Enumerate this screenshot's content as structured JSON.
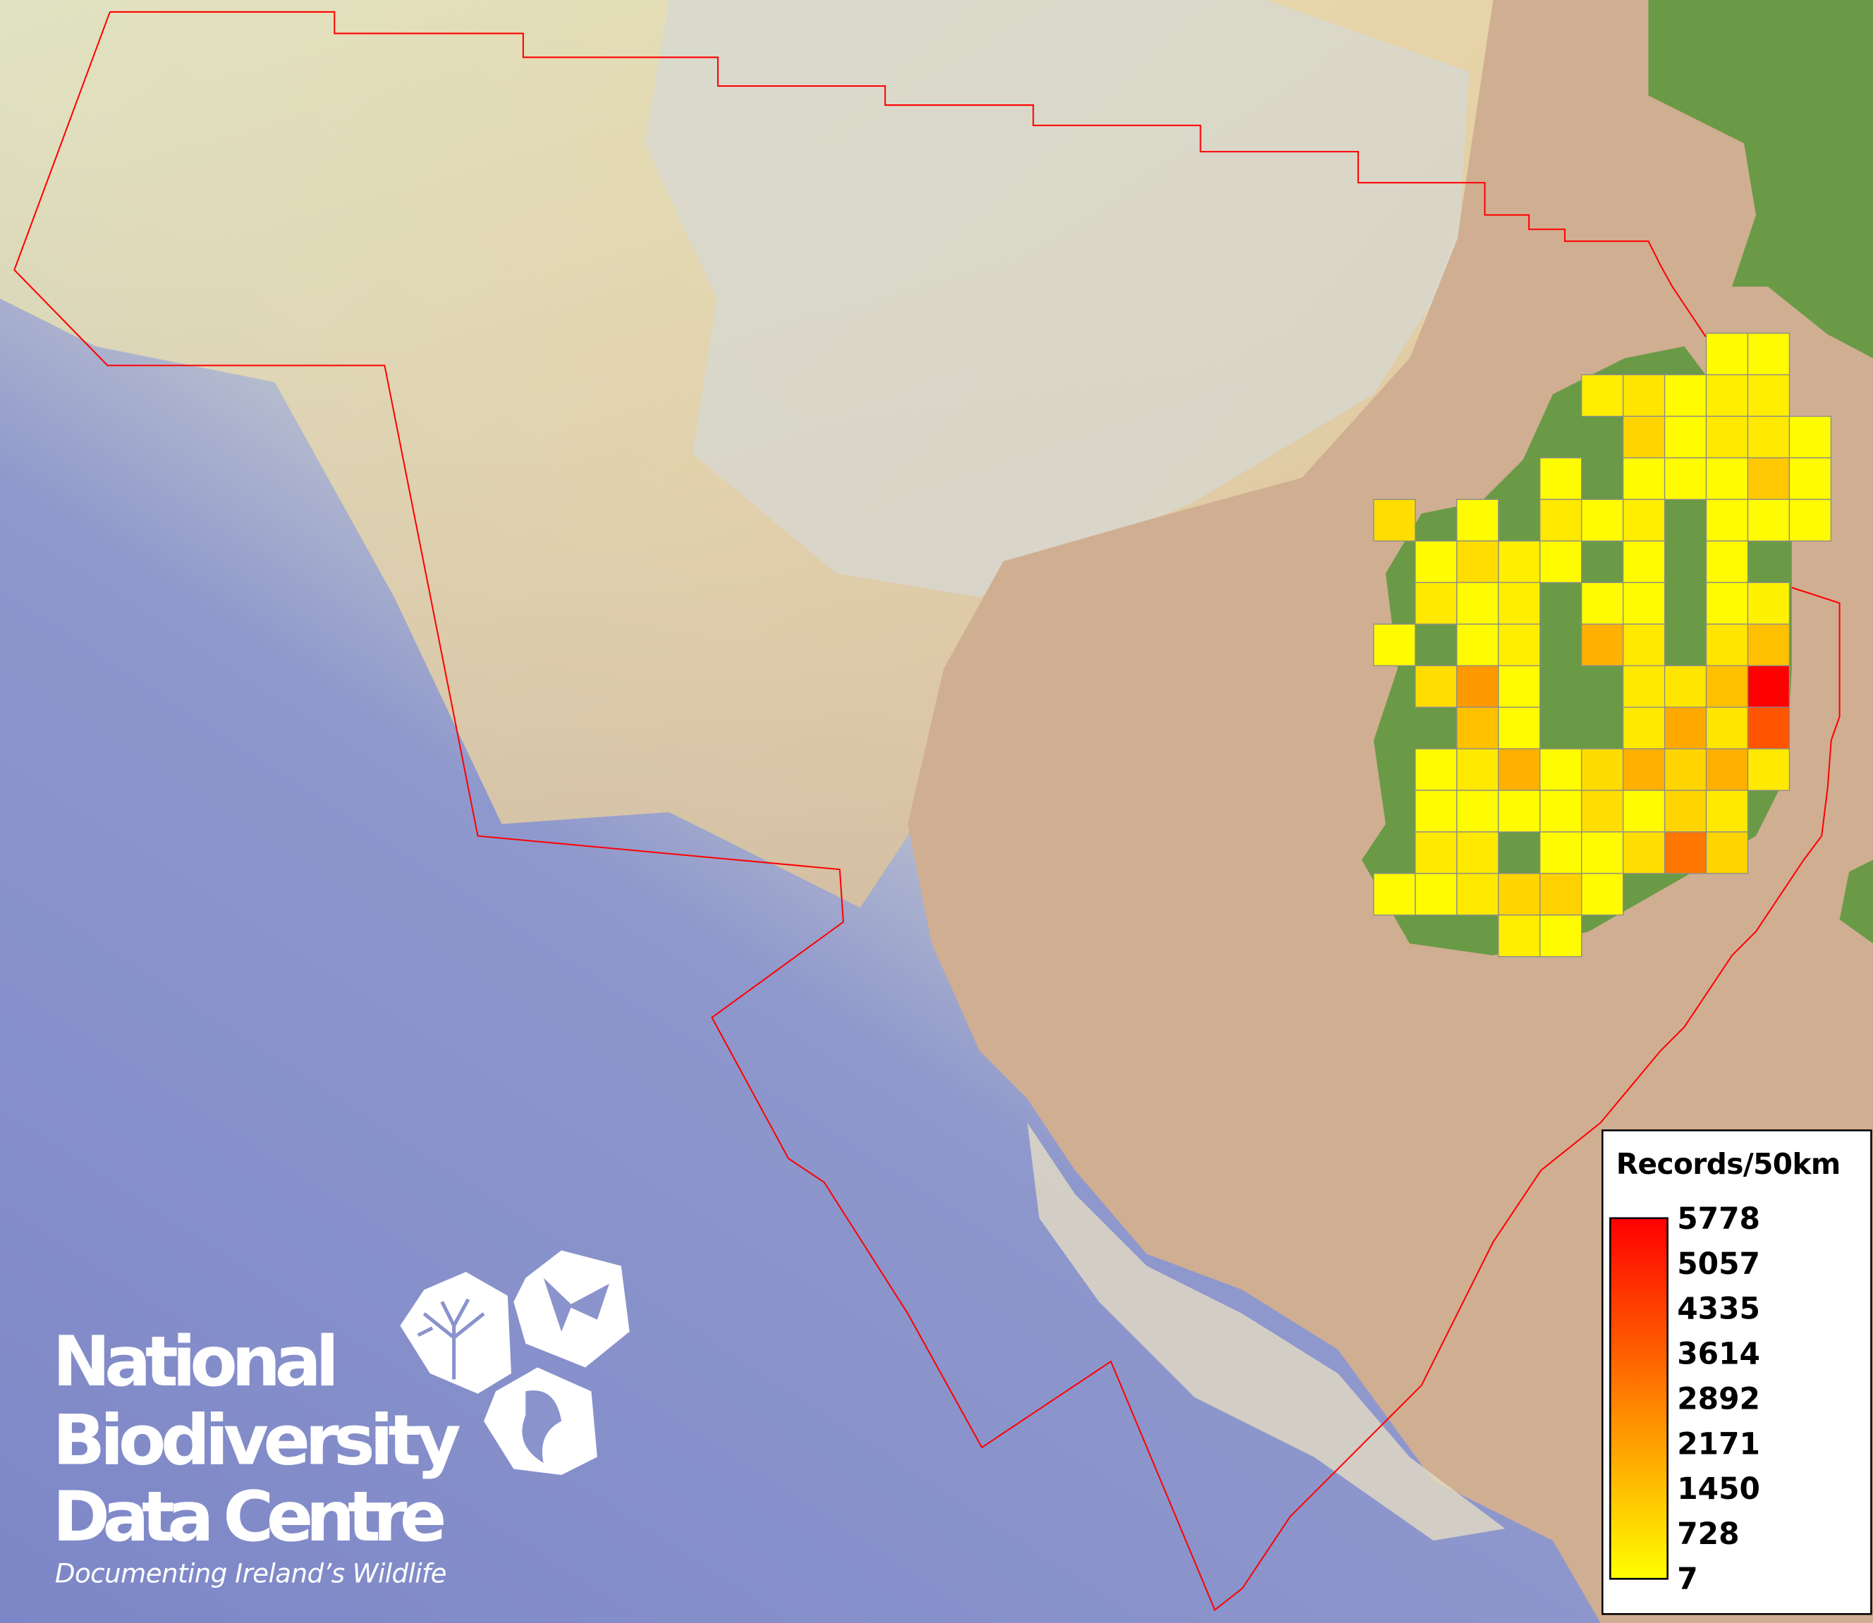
{
  "logo": {
    "line1": "National",
    "line2": "Biodiversity",
    "line3": "Data Centre",
    "tagline": "Documenting Ireland’s Wildlife",
    "icons": [
      "tree-icon",
      "butterfly-icon",
      "seahorse-icon"
    ]
  },
  "legend": {
    "title": "Records/50km",
    "labels": [
      "5778",
      "5057",
      "4335",
      "3614",
      "2892",
      "2171",
      "1450",
      "728",
      "7"
    ],
    "min": 7,
    "max": 5778,
    "color_low": "#ffff00",
    "color_high": "#ff0000"
  },
  "colors": {
    "boundary": "#ff0000",
    "grid_stroke": "#8c8c8c",
    "deep_ocean": "#7f89c8",
    "shelf": "#e8e4b4",
    "land_shelf": "#cfae92",
    "land": "#6a9a46"
  },
  "grid": {
    "cells": [
      {
        "row": 0,
        "col": 8,
        "value": 100
      },
      {
        "row": 0,
        "col": 9,
        "value": 100
      },
      {
        "row": 1,
        "col": 5,
        "value": 390
      },
      {
        "row": 1,
        "col": 6,
        "value": 600
      },
      {
        "row": 1,
        "col": 7,
        "value": 100
      },
      {
        "row": 1,
        "col": 8,
        "value": 390
      },
      {
        "row": 1,
        "col": 9,
        "value": 390
      },
      {
        "row": 2,
        "col": 6,
        "value": 980
      },
      {
        "row": 2,
        "col": 7,
        "value": 100
      },
      {
        "row": 2,
        "col": 8,
        "value": 500
      },
      {
        "row": 2,
        "col": 9,
        "value": 500
      },
      {
        "row": 2,
        "col": 10,
        "value": 100
      },
      {
        "row": 3,
        "col": 4,
        "value": 100
      },
      {
        "row": 3,
        "col": 6,
        "value": 100
      },
      {
        "row": 3,
        "col": 7,
        "value": 100
      },
      {
        "row": 3,
        "col": 8,
        "value": 100
      },
      {
        "row": 3,
        "col": 9,
        "value": 1250
      },
      {
        "row": 3,
        "col": 10,
        "value": 100
      },
      {
        "row": 4,
        "col": 0,
        "value": 770
      },
      {
        "row": 4,
        "col": 2,
        "value": 100
      },
      {
        "row": 4,
        "col": 4,
        "value": 500
      },
      {
        "row": 4,
        "col": 5,
        "value": 100
      },
      {
        "row": 4,
        "col": 6,
        "value": 390
      },
      {
        "row": 4,
        "col": 8,
        "value": 100
      },
      {
        "row": 4,
        "col": 9,
        "value": 100
      },
      {
        "row": 4,
        "col": 10,
        "value": 100
      },
      {
        "row": 5,
        "col": 1,
        "value": 100
      },
      {
        "row": 5,
        "col": 2,
        "value": 770
      },
      {
        "row": 5,
        "col": 3,
        "value": 390
      },
      {
        "row": 5,
        "col": 4,
        "value": 100
      },
      {
        "row": 5,
        "col": 6,
        "value": 100
      },
      {
        "row": 5,
        "col": 8,
        "value": 100
      },
      {
        "row": 6,
        "col": 1,
        "value": 500
      },
      {
        "row": 6,
        "col": 2,
        "value": 100
      },
      {
        "row": 6,
        "col": 3,
        "value": 390
      },
      {
        "row": 6,
        "col": 5,
        "value": 100
      },
      {
        "row": 6,
        "col": 6,
        "value": 100
      },
      {
        "row": 6,
        "col": 8,
        "value": 100
      },
      {
        "row": 6,
        "col": 9,
        "value": 300
      },
      {
        "row": 7,
        "col": 0,
        "value": 100
      },
      {
        "row": 7,
        "col": 2,
        "value": 100
      },
      {
        "row": 7,
        "col": 3,
        "value": 390
      },
      {
        "row": 7,
        "col": 5,
        "value": 1800
      },
      {
        "row": 7,
        "col": 6,
        "value": 500
      },
      {
        "row": 7,
        "col": 8,
        "value": 600
      },
      {
        "row": 7,
        "col": 9,
        "value": 1430
      },
      {
        "row": 8,
        "col": 1,
        "value": 770
      },
      {
        "row": 8,
        "col": 2,
        "value": 2320
      },
      {
        "row": 8,
        "col": 3,
        "value": 100
      },
      {
        "row": 8,
        "col": 6,
        "value": 500
      },
      {
        "row": 8,
        "col": 7,
        "value": 600
      },
      {
        "row": 8,
        "col": 8,
        "value": 1430
      },
      {
        "row": 8,
        "col": 9,
        "value": 5778
      },
      {
        "row": 9,
        "col": 2,
        "value": 1430
      },
      {
        "row": 9,
        "col": 3,
        "value": 100
      },
      {
        "row": 9,
        "col": 6,
        "value": 500
      },
      {
        "row": 9,
        "col": 7,
        "value": 1960
      },
      {
        "row": 9,
        "col": 8,
        "value": 600
      },
      {
        "row": 9,
        "col": 9,
        "value": 3860
      },
      {
        "row": 10,
        "col": 1,
        "value": 100
      },
      {
        "row": 10,
        "col": 2,
        "value": 500
      },
      {
        "row": 10,
        "col": 3,
        "value": 1800
      },
      {
        "row": 10,
        "col": 4,
        "value": 100
      },
      {
        "row": 10,
        "col": 5,
        "value": 800
      },
      {
        "row": 10,
        "col": 6,
        "value": 1800
      },
      {
        "row": 10,
        "col": 7,
        "value": 980
      },
      {
        "row": 10,
        "col": 8,
        "value": 1800
      },
      {
        "row": 10,
        "col": 9,
        "value": 500
      },
      {
        "row": 11,
        "col": 1,
        "value": 100
      },
      {
        "row": 11,
        "col": 2,
        "value": 100
      },
      {
        "row": 11,
        "col": 3,
        "value": 100
      },
      {
        "row": 11,
        "col": 4,
        "value": 100
      },
      {
        "row": 11,
        "col": 5,
        "value": 770
      },
      {
        "row": 11,
        "col": 6,
        "value": 100
      },
      {
        "row": 11,
        "col": 7,
        "value": 980
      },
      {
        "row": 11,
        "col": 8,
        "value": 500
      },
      {
        "row": 12,
        "col": 1,
        "value": 500
      },
      {
        "row": 12,
        "col": 2,
        "value": 500
      },
      {
        "row": 12,
        "col": 4,
        "value": 100
      },
      {
        "row": 12,
        "col": 5,
        "value": 100
      },
      {
        "row": 12,
        "col": 6,
        "value": 770
      },
      {
        "row": 12,
        "col": 7,
        "value": 3080
      },
      {
        "row": 12,
        "col": 8,
        "value": 980
      },
      {
        "row": 13,
        "col": 0,
        "value": 100
      },
      {
        "row": 13,
        "col": 1,
        "value": 100
      },
      {
        "row": 13,
        "col": 2,
        "value": 500
      },
      {
        "row": 13,
        "col": 3,
        "value": 980
      },
      {
        "row": 13,
        "col": 4,
        "value": 1050
      },
      {
        "row": 13,
        "col": 5,
        "value": 100
      },
      {
        "row": 14,
        "col": 3,
        "value": 400
      },
      {
        "row": 14,
        "col": 4,
        "value": 100
      }
    ]
  }
}
